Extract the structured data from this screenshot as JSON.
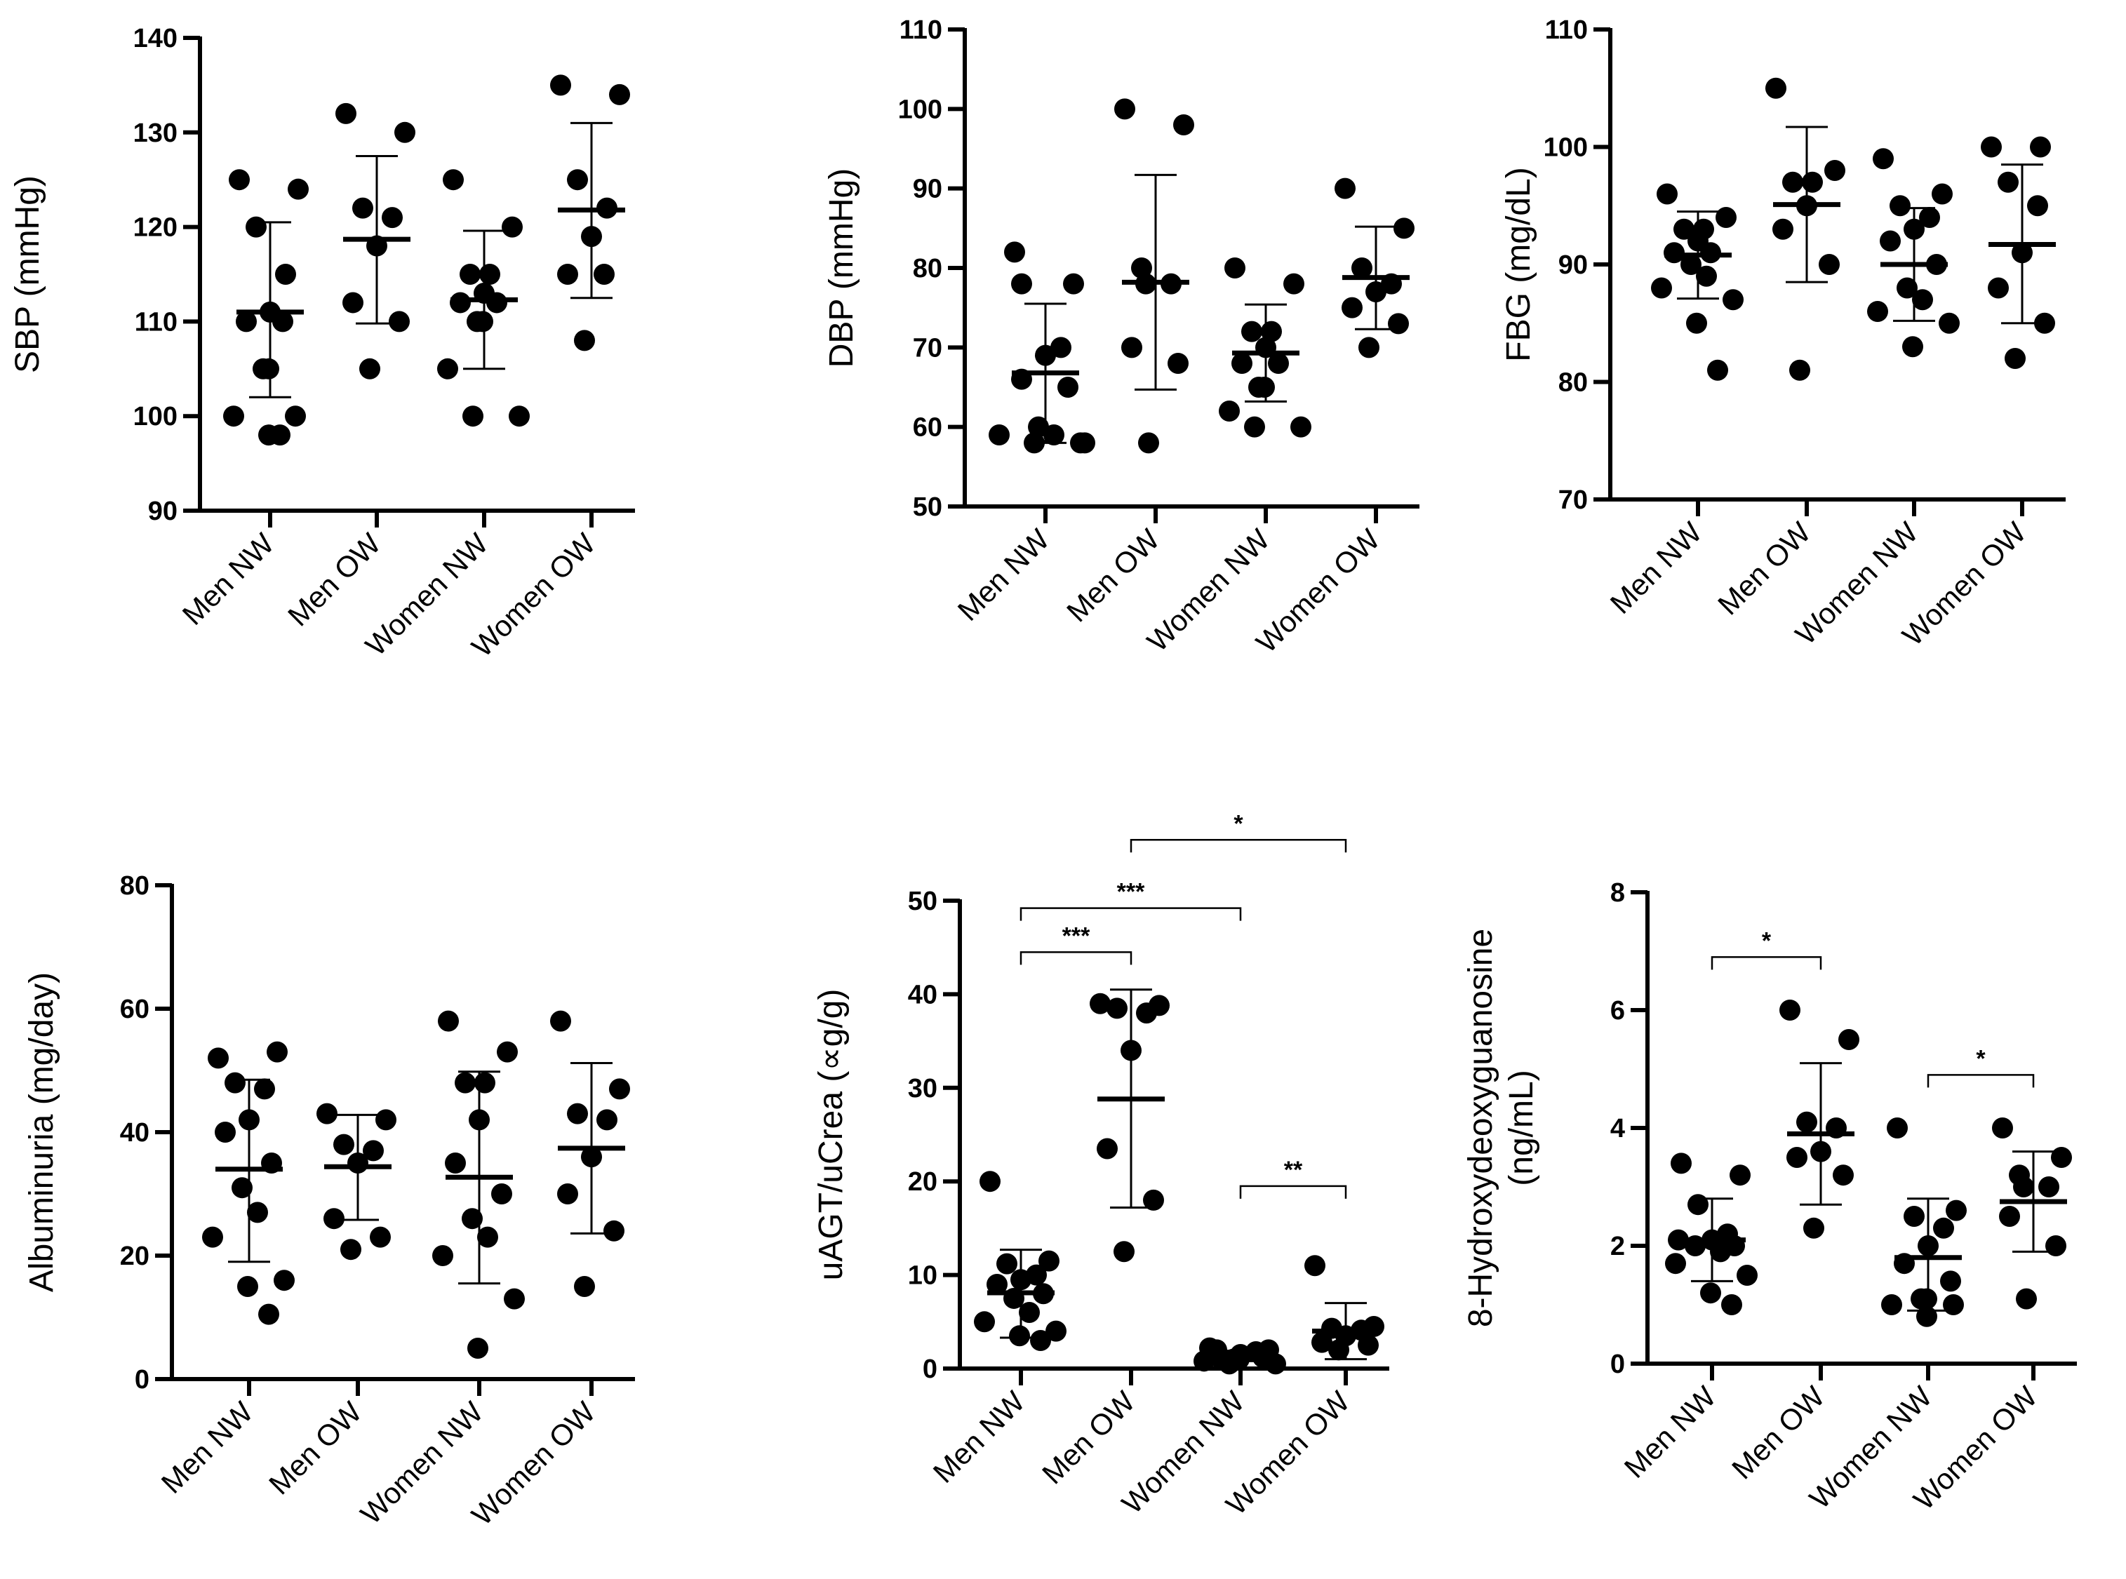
{
  "chart_data": [
    {
      "type": "scatter",
      "ylabel": "SBP (mmHg)",
      "ylabel_lines": [
        "SBP (mmHg)"
      ],
      "ylim": [
        90,
        140
      ],
      "yticks": [
        90,
        100,
        110,
        120,
        130,
        140
      ],
      "categories": [
        "Men NW",
        "Men OW",
        "Women NW",
        "Women OW"
      ],
      "groups": [
        {
          "category": "Men NW",
          "mean": 111,
          "sd_low": 102,
          "sd_high": 120.5,
          "points": [
            125,
            124,
            120,
            115,
            111,
            110,
            110,
            105,
            105,
            100,
            100,
            98,
            98
          ]
        },
        {
          "category": "Men OW",
          "mean": 118.7,
          "sd_low": 109.8,
          "sd_high": 127.5,
          "points": [
            132,
            130,
            122,
            121,
            118,
            112,
            110,
            105
          ]
        },
        {
          "category": "Women NW",
          "mean": 112.3,
          "sd_low": 105,
          "sd_high": 119.6,
          "points": [
            125,
            120,
            115,
            115,
            113,
            112,
            112,
            110,
            110,
            105,
            100,
            100
          ]
        },
        {
          "category": "Women OW",
          "mean": 121.8,
          "sd_low": 112.5,
          "sd_high": 131,
          "points": [
            135,
            134,
            125,
            122,
            119,
            115,
            115,
            108
          ]
        }
      ],
      "significance": []
    },
    {
      "type": "scatter",
      "ylabel": "DBP (mmHg)",
      "ylabel_lines": [
        "DBP (mmHg)"
      ],
      "ylim": [
        50,
        110
      ],
      "yticks": [
        50,
        60,
        70,
        80,
        90,
        100,
        110
      ],
      "categories": [
        "Men NW",
        "Men OW",
        "Women NW",
        "Women OW"
      ],
      "groups": [
        {
          "category": "Men NW",
          "mean": 66.8,
          "sd_low": 58,
          "sd_high": 75.5,
          "points": [
            82,
            78,
            78,
            70,
            69,
            66,
            65,
            60,
            59,
            59,
            58,
            58,
            58
          ]
        },
        {
          "category": "Men OW",
          "mean": 78.2,
          "sd_low": 64.7,
          "sd_high": 91.7,
          "points": [
            100,
            98,
            80,
            78,
            78,
            70,
            68,
            58
          ]
        },
        {
          "category": "Women NW",
          "mean": 69.3,
          "sd_low": 63.2,
          "sd_high": 75.4,
          "points": [
            80,
            78,
            72,
            72,
            70,
            68,
            68,
            65,
            65,
            62,
            60,
            60
          ]
        },
        {
          "category": "Women OW",
          "mean": 78.8,
          "sd_low": 72.3,
          "sd_high": 85.2,
          "points": [
            90,
            85,
            80,
            78,
            77,
            75,
            73,
            70
          ]
        }
      ],
      "significance": []
    },
    {
      "type": "scatter",
      "ylabel": "FBG (mg/dL)",
      "ylabel_lines": [
        "FBG (mg/dL)"
      ],
      "ylim": [
        70,
        110
      ],
      "yticks": [
        70,
        80,
        90,
        100,
        110
      ],
      "categories": [
        "Men NW",
        "Men OW",
        "Women NW",
        "Women OW"
      ],
      "groups": [
        {
          "category": "Men NW",
          "mean": 90.8,
          "sd_low": 87.1,
          "sd_high": 94.5,
          "points": [
            96,
            94,
            93,
            93,
            92,
            91,
            91,
            90,
            89,
            88,
            87,
            85,
            81
          ]
        },
        {
          "category": "Men OW",
          "mean": 95.1,
          "sd_low": 88.5,
          "sd_high": 101.7,
          "points": [
            105,
            98,
            97,
            97,
            95,
            93,
            90,
            81
          ]
        },
        {
          "category": "Women NW",
          "mean": 90,
          "sd_low": 85.2,
          "sd_high": 94.8,
          "points": [
            99,
            96,
            95,
            94,
            93,
            92,
            90,
            88,
            87,
            86,
            85,
            83
          ]
        },
        {
          "category": "Women OW",
          "mean": 91.7,
          "sd_low": 85,
          "sd_high": 98.5,
          "points": [
            100,
            100,
            97,
            95,
            91,
            88,
            85,
            82
          ]
        }
      ],
      "significance": []
    },
    {
      "type": "scatter",
      "ylabel": "Albuminuria (mg/day)",
      "ylabel_lines": [
        "Albuminuria (mg/day)"
      ],
      "ylim": [
        0,
        80
      ],
      "yticks": [
        0,
        20,
        40,
        60,
        80
      ],
      "categories": [
        "Men NW",
        "Men OW",
        "Women NW",
        "Women OW"
      ],
      "groups": [
        {
          "category": "Men NW",
          "mean": 34,
          "sd_low": 19,
          "sd_high": 48.5,
          "points": [
            52,
            53,
            48,
            47,
            42,
            40,
            35,
            31,
            27,
            23,
            16,
            15,
            10.5
          ]
        },
        {
          "category": "Men OW",
          "mean": 34.4,
          "sd_low": 25.8,
          "sd_high": 42.8,
          "points": [
            43,
            42,
            38,
            37,
            35,
            26,
            23,
            21
          ]
        },
        {
          "category": "Women NW",
          "mean": 32.7,
          "sd_low": 15.5,
          "sd_high": 49.8,
          "points": [
            58,
            53,
            48,
            48,
            42,
            35,
            30,
            26,
            23,
            20,
            13,
            5
          ]
        },
        {
          "category": "Women OW",
          "mean": 37.4,
          "sd_low": 23.6,
          "sd_high": 51.2,
          "points": [
            58,
            47,
            43,
            42,
            36,
            30,
            24,
            15
          ]
        }
      ],
      "significance": []
    },
    {
      "type": "scatter",
      "ylabel": "uAGT/uCrea (∝g/g)",
      "ylabel_lines": [
        "uAGT/uCrea (∝g/g)"
      ],
      "ylim": [
        0,
        50
      ],
      "yticks": [
        0,
        10,
        20,
        30,
        40,
        50
      ],
      "categories": [
        "Men NW",
        "Men OW",
        "Women NW",
        "Women OW"
      ],
      "groups": [
        {
          "category": "Men NW",
          "mean": 8.1,
          "sd_low": 3.3,
          "sd_high": 12.7,
          "points": [
            20,
            11.5,
            11.2,
            10,
            9.5,
            9,
            8,
            7.5,
            6,
            5,
            4,
            3.5,
            3
          ]
        },
        {
          "category": "Men OW",
          "mean": 28.8,
          "sd_low": 17.2,
          "sd_high": 40.5,
          "points": [
            39,
            38.8,
            38.5,
            38,
            34,
            23.5,
            18,
            12.5
          ]
        },
        {
          "category": "Women NW",
          "mean": 1.3,
          "sd_low": 0.8,
          "sd_high": 1.9,
          "points": [
            2.2,
            2,
            2,
            1.8,
            1.5,
            1.3,
            1.2,
            1,
            1,
            0.8,
            0.5,
            0.5
          ]
        },
        {
          "category": "Women OW",
          "mean": 4,
          "sd_low": 1,
          "sd_high": 7,
          "points": [
            11,
            4.5,
            4.3,
            4.1,
            3.5,
            2.8,
            2.5,
            2
          ]
        }
      ],
      "significance": [
        {
          "from": 0,
          "to": 1,
          "y": 44.5,
          "label": "***"
        },
        {
          "from": 0,
          "to": 2,
          "y": 49.2,
          "label": "***"
        },
        {
          "from": 1,
          "to": 3,
          "y": 56.5,
          "label": "*"
        },
        {
          "from": 2,
          "to": 3,
          "y": 19.5,
          "label": "**"
        }
      ]
    },
    {
      "type": "scatter",
      "ylabel": "8-Hydroxydeoxyguanosine (ng/mL)",
      "ylabel_lines": [
        "8-Hydroxydeoxyguanosine",
        "(ng/mL)"
      ],
      "ylim": [
        0,
        8
      ],
      "yticks": [
        0,
        2,
        4,
        6,
        8
      ],
      "categories": [
        "Men NW",
        "Men OW",
        "Women NW",
        "Women OW"
      ],
      "groups": [
        {
          "category": "Men NW",
          "mean": 2.1,
          "sd_low": 1.4,
          "sd_high": 2.8,
          "points": [
            3.4,
            3.2,
            2.7,
            2.2,
            2.1,
            2.1,
            2,
            2,
            1.9,
            1.7,
            1.5,
            1.2,
            1
          ]
        },
        {
          "category": "Men OW",
          "mean": 3.9,
          "sd_low": 2.7,
          "sd_high": 5.1,
          "points": [
            6,
            5.5,
            4.1,
            4,
            3.6,
            3.5,
            3.2,
            2.3
          ]
        },
        {
          "category": "Women NW",
          "mean": 1.8,
          "sd_low": 0.9,
          "sd_high": 2.8,
          "points": [
            4,
            2.6,
            2.5,
            2.3,
            2,
            1.7,
            1.4,
            1.1,
            1.1,
            1,
            1,
            0.8
          ]
        },
        {
          "category": "Women OW",
          "mean": 2.75,
          "sd_low": 1.9,
          "sd_high": 3.6,
          "points": [
            4,
            3.5,
            3.2,
            3,
            3,
            2.5,
            2,
            1.1
          ]
        }
      ],
      "significance": [
        {
          "from": 0,
          "to": 1,
          "y": 6.9,
          "label": "*"
        },
        {
          "from": 2,
          "to": 3,
          "y": 4.9,
          "label": "*"
        }
      ]
    }
  ]
}
